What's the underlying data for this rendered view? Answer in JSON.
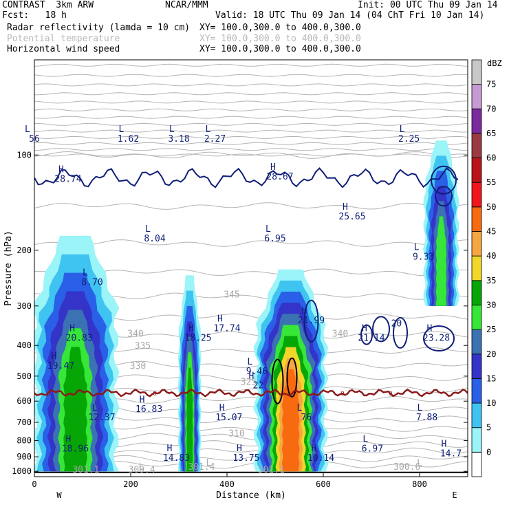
{
  "header": {
    "line1_left": "CONTRAST  3km ARW",
    "line1_center": "NCAR/MMM",
    "line1_right": "Init: 00 UTC Thu 09 Jan 14",
    "line2_left": "Fcst:   18 h",
    "line2_right": "Valid: 18 UTC Thu 09 Jan 14 (04 ChT Fri 10 Jan 14)",
    "fields": [
      {
        "name": "Radar reflectivity (lamda = 10 cm)",
        "xy": "XY= 100.0,300.0 to 400.0,300.0",
        "muted": false
      },
      {
        "name": "Potential temperature",
        "xy": "XY= 100.0,300.0 to 400.0,300.0",
        "muted": true
      },
      {
        "name": "Horizontal wind speed",
        "xy": "XY= 100.0,300.0 to 400.0,300.0",
        "muted": false
      }
    ]
  },
  "chart_data": {
    "type": "heatmap",
    "title": "Radar reflectivity (lamda = 10 cm)",
    "xlabel": "Distance (km)",
    "ylabel": "Pressure (hPa)",
    "xlim": [
      0,
      900
    ],
    "ylim": [
      1040,
      50
    ],
    "y_scale": "log",
    "x_ticks": [
      0,
      200,
      400,
      600,
      800
    ],
    "y_ticks": [
      100,
      200,
      300,
      400,
      500,
      600,
      700,
      800,
      900,
      1000
    ],
    "x_end_labels": {
      "left": "W",
      "right": "E"
    },
    "colorbar": {
      "unit": "dBZ",
      "levels": [
        0,
        5,
        10,
        15,
        20,
        25,
        30,
        35,
        40,
        45,
        50,
        55,
        60,
        65,
        70,
        75
      ],
      "colors": [
        "#ffffff",
        "#9bf4f8",
        "#3fc4f2",
        "#2a5fe8",
        "#3434c8",
        "#3a72b4",
        "#36e638",
        "#06a606",
        "#f0d72a",
        "#f6a640",
        "#f76a10",
        "#f0141c",
        "#b8141a",
        "#9c3a44",
        "#7a2a9c",
        "#c89ad4",
        "#c8c8c8"
      ]
    },
    "reflectivity_columns": [
      {
        "x": [
          0,
          170
        ],
        "top_hPa": 180,
        "bottom_hPa": 1000,
        "max_dBZ": 35
      },
      {
        "x": [
          300,
          345
        ],
        "top_hPa": 240,
        "bottom_hPa": 1000,
        "max_dBZ": 35
      },
      {
        "x": [
          460,
          605
        ],
        "top_hPa": 230,
        "bottom_hPa": 1000,
        "max_dBZ": 50
      },
      {
        "x": [
          810,
          880
        ],
        "top_hPa": 90,
        "bottom_hPa": 300,
        "max_dBZ": 30
      }
    ],
    "freezing_level": {
      "label": "0",
      "pressure_hPa": 565
    },
    "theta_labels": [
      {
        "text": "345",
        "x": 410,
        "p": 282
      },
      {
        "text": "340",
        "x": 210,
        "p": 375
      },
      {
        "text": "340",
        "x": 635,
        "p": 375
      },
      {
        "text": "335",
        "x": 225,
        "p": 410
      },
      {
        "text": "330",
        "x": 215,
        "p": 475
      },
      {
        "text": "325",
        "x": 445,
        "p": 533
      },
      {
        "text": "310",
        "x": 420,
        "p": 775
      },
      {
        "text": "301.1",
        "x": 107,
        "p": 1010
      },
      {
        "text": "300.4",
        "x": 223,
        "p": 1010
      },
      {
        "text": "301.4",
        "x": 347,
        "p": 990
      },
      {
        "text": "301.1",
        "x": 492,
        "p": 1010
      },
      {
        "text": "300.6",
        "x": 774,
        "p": 990
      }
    ],
    "theta_minima_marks": [
      {
        "text": "L",
        "x": 362,
        "p": 960
      },
      {
        "text": "L",
        "x": 222,
        "p": 990
      },
      {
        "text": "L",
        "x": 800,
        "p": 962
      }
    ],
    "wind_contour_labels": [
      {
        "text": "20",
        "x": 752,
        "p": 348
      }
    ],
    "wind_extrema": [
      {
        "type": "L",
        "value": "56",
        "x": 0,
        "p": 88
      },
      {
        "type": "L",
        "value": "1.62",
        "x": 195,
        "p": 88
      },
      {
        "type": "L",
        "value": "3.18",
        "x": 300,
        "p": 88
      },
      {
        "type": "L",
        "value": "2.27",
        "x": 375,
        "p": 88
      },
      {
        "type": "L",
        "value": "2.25",
        "x": 778,
        "p": 88
      },
      {
        "type": "H",
        "value": "28.74",
        "x": 70,
        "p": 118
      },
      {
        "type": "H",
        "value": "28.67",
        "x": 510,
        "p": 116
      },
      {
        "type": "H",
        "value": "25.65",
        "x": 660,
        "p": 155
      },
      {
        "type": "L",
        "value": "8.04",
        "x": 250,
        "p": 182
      },
      {
        "type": "L",
        "value": "6.95",
        "x": 500,
        "p": 182
      },
      {
        "type": "L",
        "value": "9.33",
        "x": 808,
        "p": 208
      },
      {
        "type": "L",
        "value": "8.70",
        "x": 120,
        "p": 250
      },
      {
        "type": "H",
        "value": "21.99",
        "x": 575,
        "p": 330
      },
      {
        "type": "H",
        "value": "17.74",
        "x": 400,
        "p": 350
      },
      {
        "type": "H",
        "value": "20.83",
        "x": 93,
        "p": 375
      },
      {
        "type": "H",
        "value": "18.25",
        "x": 340,
        "p": 375
      },
      {
        "type": "H",
        "value": "21.14",
        "x": 700,
        "p": 375
      },
      {
        "type": "H",
        "value": "23.28",
        "x": 835,
        "p": 375
      },
      {
        "type": "H",
        "value": "19.47",
        "x": 55,
        "p": 460
      },
      {
        "type": "L",
        "value": "9.46",
        "x": 462,
        "p": 478
      },
      {
        "type": "H",
        "value": "22",
        "x": 465,
        "p": 530
      },
      {
        "type": "H",
        "value": "16.83",
        "x": 238,
        "p": 630
      },
      {
        "type": "L",
        "value": "12.37",
        "x": 140,
        "p": 670
      },
      {
        "type": "H",
        "value": "15.07",
        "x": 404,
        "p": 670
      },
      {
        "type": "L",
        "value": "76",
        "x": 565,
        "p": 670
      },
      {
        "type": "L",
        "value": "7.88",
        "x": 815,
        "p": 670
      },
      {
        "type": "H",
        "value": "18.96",
        "x": 85,
        "p": 840
      },
      {
        "type": "L",
        "value": "6.97",
        "x": 702,
        "p": 840
      },
      {
        "type": "H",
        "value": "14.83",
        "x": 295,
        "p": 900
      },
      {
        "type": "H",
        "value": "13.75",
        "x": 440,
        "p": 900
      },
      {
        "type": "H",
        "value": "10.14",
        "x": 595,
        "p": 900
      },
      {
        "type": "H",
        "value": "14.7",
        "x": 865,
        "p": 870
      }
    ]
  }
}
